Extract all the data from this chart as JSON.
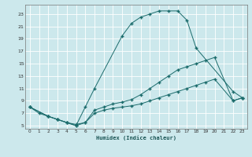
{
  "xlabel": "Humidex (Indice chaleur)",
  "bg_color": "#cce8ec",
  "grid_color": "#b0d4d8",
  "line_color": "#1a6b6b",
  "xlim": [
    -0.5,
    23.5
  ],
  "ylim": [
    4.5,
    24.5
  ],
  "xticks": [
    0,
    1,
    2,
    3,
    4,
    5,
    6,
    7,
    8,
    9,
    10,
    11,
    12,
    13,
    14,
    15,
    16,
    17,
    18,
    19,
    20,
    21,
    22,
    23
  ],
  "yticks": [
    5,
    7,
    9,
    11,
    13,
    15,
    17,
    19,
    21,
    23
  ],
  "curve1_x": [
    0,
    1,
    2,
    3,
    4,
    5,
    6,
    7,
    10,
    11,
    12,
    13,
    14,
    15,
    16,
    17,
    18,
    22,
    23
  ],
  "curve1_y": [
    8,
    7,
    6.5,
    6,
    5.5,
    5,
    8,
    11,
    19.5,
    21.5,
    22.5,
    23,
    23.5,
    23.5,
    23.5,
    22,
    17.5,
    10.5,
    9.5
  ],
  "curve2_x": [
    0,
    2,
    3,
    4,
    5,
    6,
    7,
    8,
    9,
    10,
    11,
    12,
    13,
    14,
    15,
    16,
    17,
    18,
    19,
    20,
    22,
    23
  ],
  "curve2_y": [
    8,
    6.5,
    6,
    5.5,
    5.2,
    5.5,
    7.5,
    8,
    8.5,
    8.8,
    9.2,
    10,
    11,
    12,
    13,
    14,
    14.5,
    15,
    15.5,
    16,
    9,
    9.5
  ],
  "curve3_x": [
    0,
    2,
    3,
    4,
    5,
    6,
    7,
    8,
    9,
    10,
    11,
    12,
    13,
    14,
    15,
    16,
    17,
    18,
    19,
    20,
    22,
    23
  ],
  "curve3_y": [
    8,
    6.5,
    6,
    5.5,
    5,
    5.5,
    7,
    7.5,
    7.8,
    8,
    8.2,
    8.5,
    9,
    9.5,
    10,
    10.5,
    11,
    11.5,
    12,
    12.5,
    9,
    9.5
  ]
}
